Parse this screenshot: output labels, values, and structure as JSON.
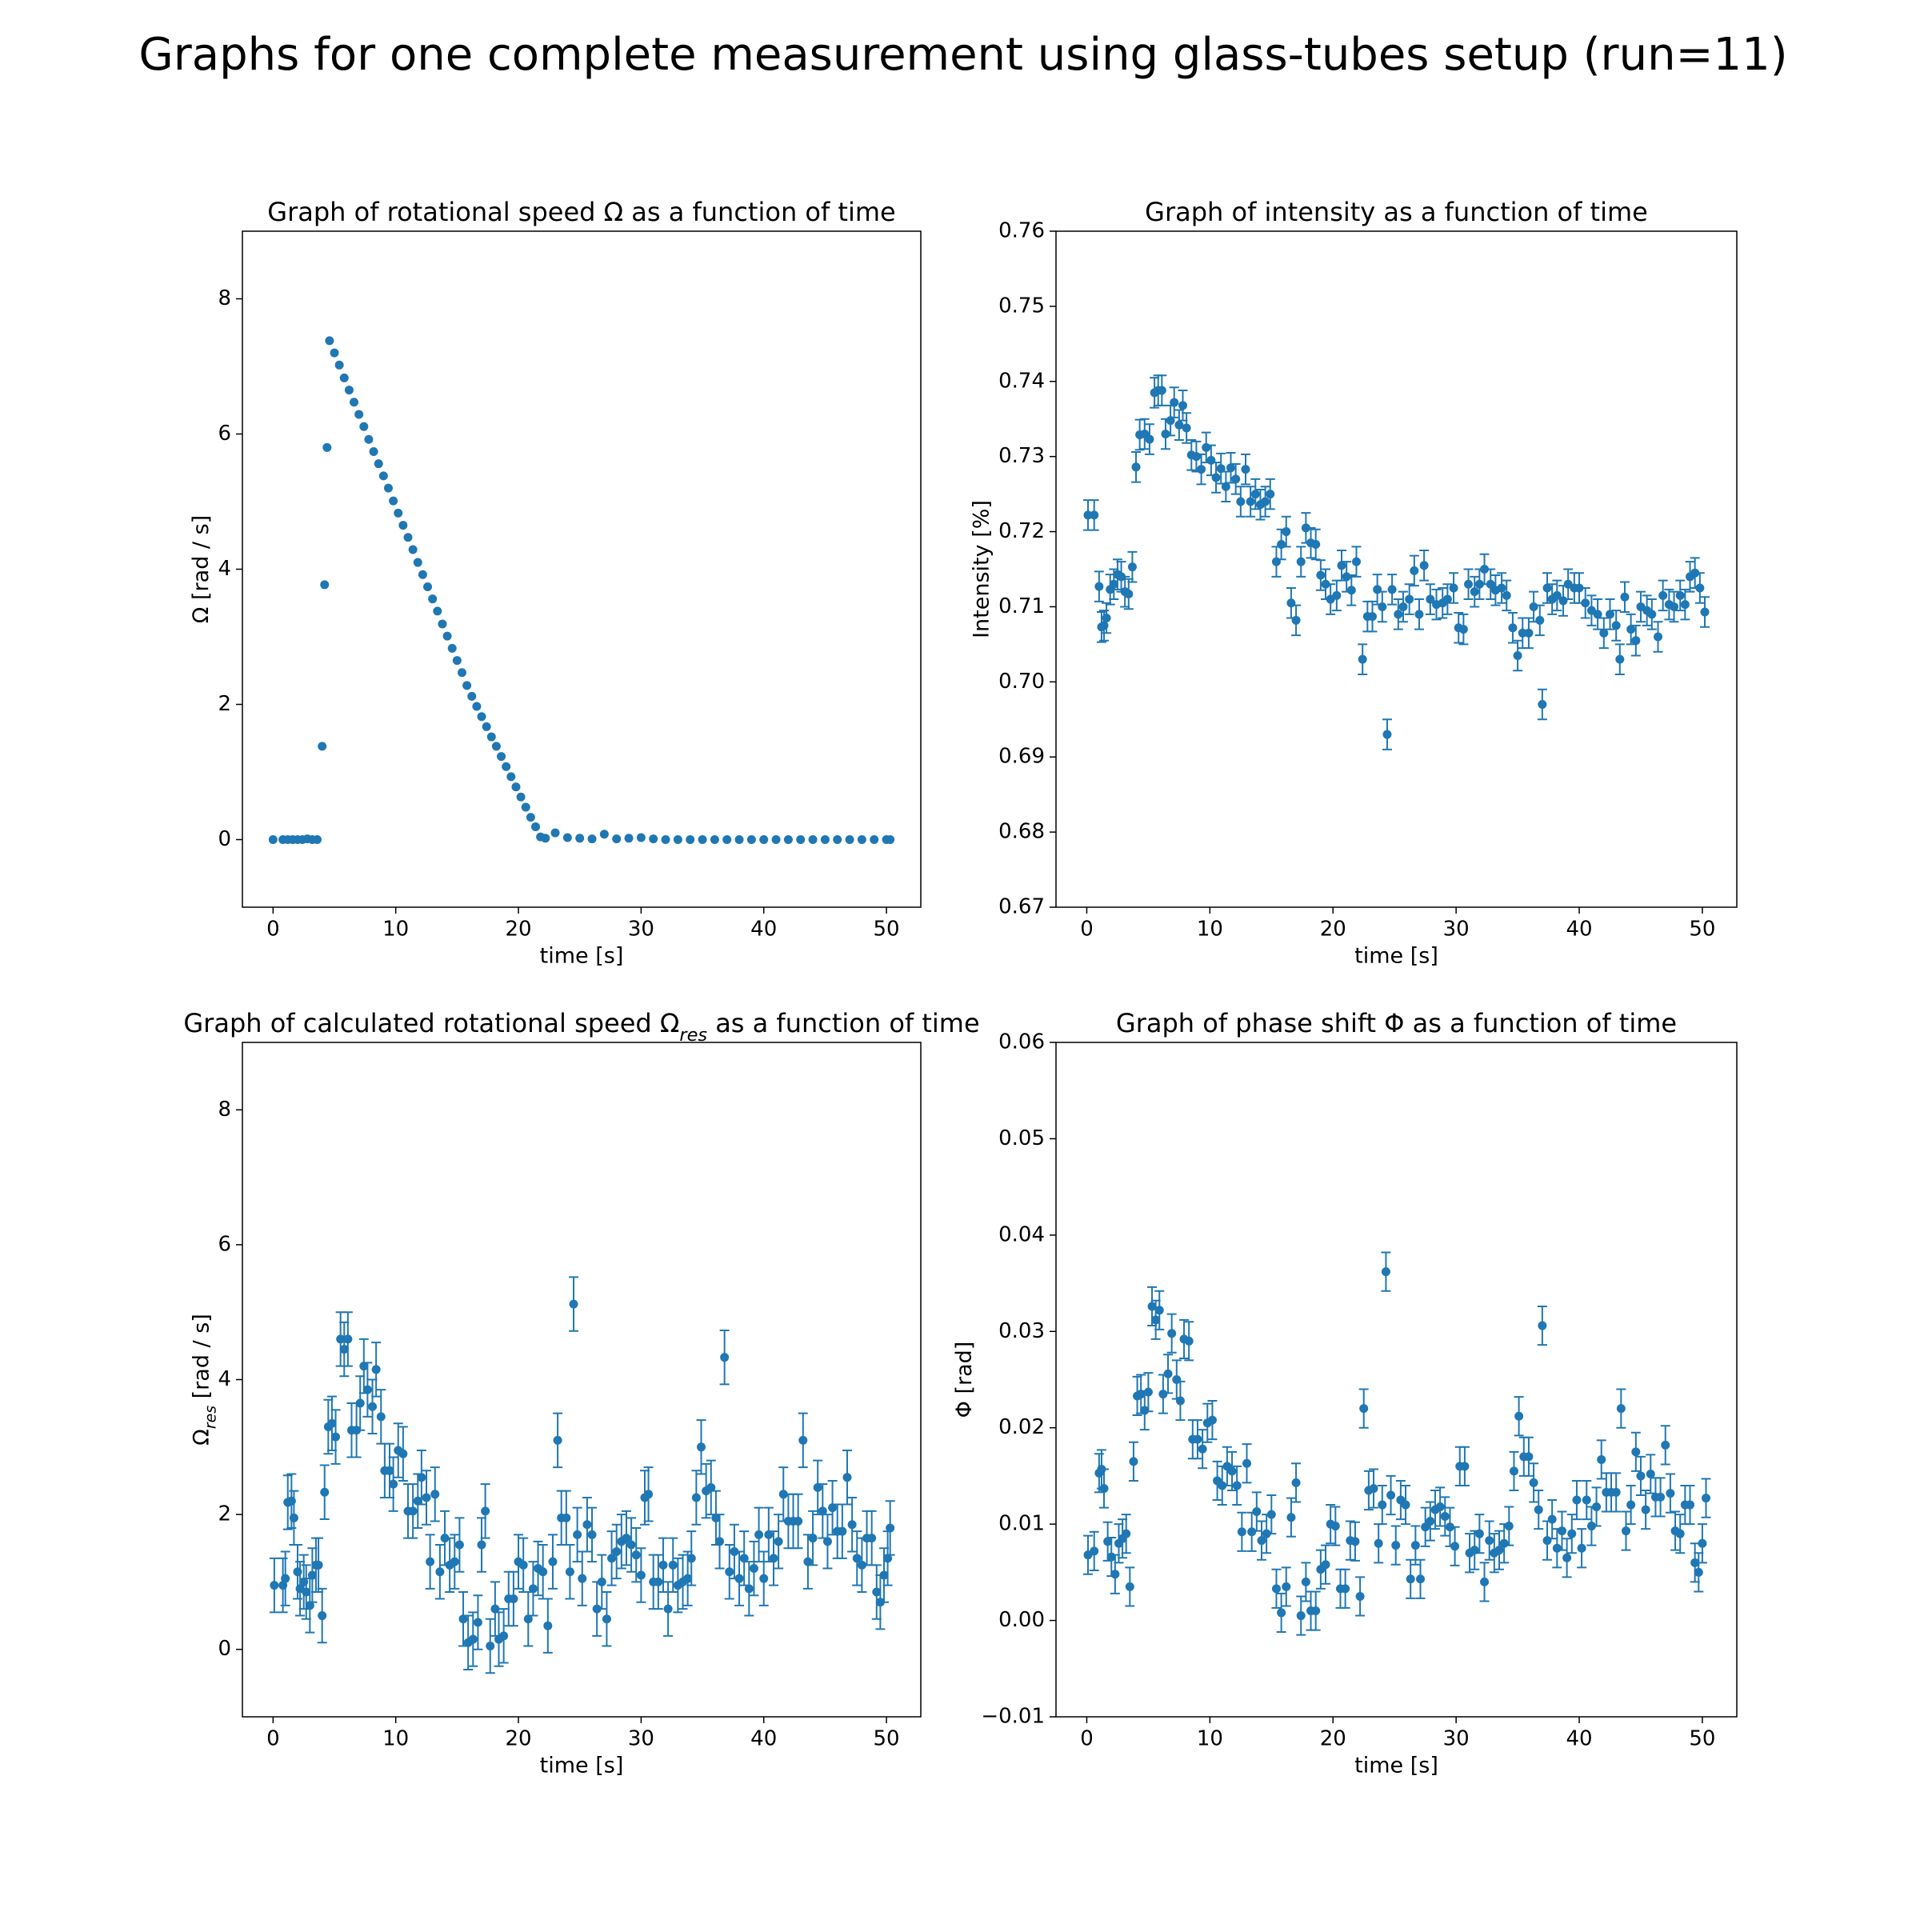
{
  "title": "Graphs for one complete measurement using glass-tubes setup (run=11)",
  "chart_data": [
    {
      "type": "scatter",
      "title": "Graph of rotational speed Ω as a function of time",
      "xlabel": "time [s]",
      "ylabel": "Ω [rad / s]",
      "color": "#1f77b4",
      "xlim": [
        -2.5,
        52.8
      ],
      "ylim": [
        -1,
        9
      ],
      "xticks": [
        0,
        10,
        20,
        30,
        40,
        50
      ],
      "yticks": [
        0,
        2,
        4,
        6,
        8
      ],
      "x": [
        0,
        0.8,
        1.2,
        1.6,
        2.0,
        2.4,
        2.8,
        3.2,
        3.6,
        4.0,
        4.2,
        4.4,
        4.6,
        5.0,
        5.4,
        5.8,
        6.2,
        6.6,
        7.0,
        7.4,
        7.8,
        8.2,
        8.6,
        9.0,
        9.4,
        9.8,
        10.2,
        10.6,
        11.0,
        11.4,
        11.8,
        12.2,
        12.6,
        13.0,
        13.4,
        13.8,
        14.2,
        14.6,
        15.0,
        15.4,
        15.8,
        16.2,
        16.6,
        17.0,
        17.4,
        17.8,
        18.2,
        18.6,
        19.0,
        19.4,
        19.8,
        20.2,
        20.6,
        21.0,
        21.4,
        21.8,
        22.2,
        23,
        24,
        25,
        26,
        27,
        28,
        29,
        30,
        31,
        32,
        33,
        34,
        35,
        36,
        37,
        38,
        39,
        40,
        41,
        42,
        43,
        44,
        45,
        46,
        47,
        48,
        49,
        50,
        50.3
      ],
      "values": [
        0,
        0,
        0,
        0,
        0,
        0,
        0.01,
        0,
        0,
        1.38,
        3.77,
        5.8,
        7.38,
        7.2,
        7.02,
        6.83,
        6.65,
        6.47,
        6.29,
        6.11,
        5.92,
        5.74,
        5.56,
        5.38,
        5.2,
        5.01,
        4.83,
        4.65,
        4.47,
        4.29,
        4.1,
        3.92,
        3.74,
        3.56,
        3.38,
        3.19,
        3.01,
        2.83,
        2.65,
        2.47,
        2.28,
        2.12,
        1.97,
        1.82,
        1.67,
        1.52,
        1.38,
        1.23,
        1.08,
        0.93,
        0.78,
        0.63,
        0.48,
        0.33,
        0.19,
        0.04,
        0.02,
        0.1,
        0.03,
        0.02,
        0.01,
        0.08,
        0.01,
        0.02,
        0.03,
        0.01,
        0,
        0,
        0,
        0,
        0,
        0,
        0,
        0,
        0,
        0,
        0,
        0,
        0,
        0,
        0,
        0,
        0,
        0,
        0,
        0
      ]
    },
    {
      "type": "errorbar",
      "title": "Graph of intensity as a function of time",
      "xlabel": "time [s]",
      "ylabel": "Intensity [%]",
      "color": "#1f77b4",
      "yerr": 0.002,
      "xlim": [
        -2.5,
        52.8
      ],
      "ylim": [
        0.67,
        0.76
      ],
      "xticks": [
        0,
        10,
        20,
        30,
        40,
        50
      ],
      "yticks": [
        0.67,
        0.68,
        0.69,
        {
          "value": 0.7,
          "label": "0.70"
        },
        0.71,
        0.72,
        0.73,
        0.74,
        0.75,
        0.76
      ],
      "x": [
        0.1,
        0.6,
        1.0,
        1.2,
        1.4,
        1.6,
        1.9,
        2.2,
        2.5,
        2.8,
        3.1,
        3.4,
        3.7,
        4.0,
        4.3,
        4.7,
        5.1,
        5.5,
        5.8,
        6.1,
        6.4,
        6.8,
        7.1,
        7.5,
        7.8,
        8.1,
        8.5,
        8.9,
        9.3,
        9.7,
        10.1,
        10.5,
        10.9,
        11.3,
        11.7,
        12.1,
        12.5,
        12.9,
        13.3,
        13.7,
        14.1,
        14.5,
        14.9,
        15.4,
        15.8,
        16.2,
        16.6,
        17.0,
        17.4,
        17.8,
        18.2,
        18.6,
        19.0,
        19.4,
        19.8,
        20.3,
        20.7,
        21.1,
        21.5,
        21.9,
        22.4,
        22.8,
        23.2,
        23.6,
        24.0,
        24.4,
        24.8,
        25.3,
        25.7,
        26.2,
        26.6,
        27.0,
        27.4,
        27.9,
        28.4,
        28.9,
        29.3,
        29.8,
        30.2,
        30.6,
        31.0,
        31.5,
        31.9,
        32.3,
        32.8,
        33.2,
        33.7,
        34.1,
        34.6,
        35.0,
        35.4,
        35.9,
        36.3,
        36.8,
        37.0,
        37.4,
        37.8,
        38.2,
        38.7,
        39.1,
        39.6,
        40.0,
        40.5,
        41.0,
        41.5,
        42.0,
        42.5,
        43.0,
        43.3,
        43.7,
        44.2,
        44.6,
        45.0,
        45.5,
        45.9,
        46.4,
        46.8,
        47.3,
        47.7,
        48.2,
        48.6,
        49.0,
        49.4,
        49.8,
        50.2
      ],
      "values": [
        0.7222,
        0.7222,
        0.7127,
        0.7073,
        0.7075,
        0.7085,
        0.7123,
        0.713,
        0.7143,
        0.714,
        0.712,
        0.7117,
        0.7153,
        0.7286,
        0.7329,
        0.733,
        0.7323,
        0.7385,
        0.7388,
        0.7388,
        0.733,
        0.7348,
        0.7372,
        0.7342,
        0.7368,
        0.7338,
        0.7302,
        0.73,
        0.7283,
        0.7312,
        0.7295,
        0.7272,
        0.7284,
        0.726,
        0.7285,
        0.727,
        0.724,
        0.7283,
        0.724,
        0.725,
        0.7236,
        0.724,
        0.725,
        0.716,
        0.7183,
        0.72,
        0.7105,
        0.7082,
        0.716,
        0.7205,
        0.7185,
        0.7183,
        0.7142,
        0.713,
        0.711,
        0.7115,
        0.7155,
        0.714,
        0.7122,
        0.716,
        0.703,
        0.7087,
        0.7087,
        0.7123,
        0.71,
        0.693,
        0.7123,
        0.709,
        0.71,
        0.711,
        0.7148,
        0.709,
        0.7155,
        0.711,
        0.7103,
        0.7105,
        0.711,
        0.7125,
        0.7072,
        0.707,
        0.713,
        0.712,
        0.713,
        0.715,
        0.713,
        0.7122,
        0.7125,
        0.7115,
        0.7072,
        0.7035,
        0.7065,
        0.7065,
        0.71,
        0.7082,
        0.697,
        0.7125,
        0.711,
        0.7115,
        0.7108,
        0.713,
        0.7125,
        0.7125,
        0.7105,
        0.7095,
        0.709,
        0.7065,
        0.709,
        0.7075,
        0.703,
        0.7113,
        0.707,
        0.7055,
        0.71,
        0.7095,
        0.709,
        0.706,
        0.7115,
        0.7103,
        0.71,
        0.7115,
        0.7103,
        0.714,
        0.7145,
        0.7125,
        0.7093
      ]
    },
    {
      "type": "errorbar",
      "title": [
        "Graph of calculated rotational speed Ω",
        "res",
        " as a function of time"
      ],
      "xlabel": "time [s]",
      "ylabel": [
        "Ω",
        "res",
        " [rad / s]"
      ],
      "color": "#1f77b4",
      "yerr": 0.4,
      "xlim": [
        -2.5,
        52.8
      ],
      "ylim": [
        -1,
        9
      ],
      "xticks": [
        0,
        10,
        20,
        30,
        40,
        50
      ],
      "yticks": [
        0,
        2,
        4,
        6,
        8
      ],
      "x": [
        0.1,
        0.8,
        1.0,
        1.2,
        1.5,
        1.7,
        2.0,
        2.2,
        2.5,
        2.7,
        3.0,
        3.2,
        3.5,
        3.7,
        4.0,
        4.2,
        4.5,
        4.8,
        5.1,
        5.5,
        5.8,
        6.1,
        6.4,
        6.8,
        7.1,
        7.4,
        7.7,
        8.1,
        8.4,
        8.8,
        9.1,
        9.5,
        9.8,
        10.2,
        10.6,
        11.0,
        11.4,
        11.8,
        12.1,
        12.5,
        12.8,
        13.2,
        13.6,
        14.0,
        14.4,
        14.8,
        15.2,
        15.5,
        15.9,
        16.3,
        16.7,
        17.0,
        17.3,
        17.7,
        18.1,
        18.4,
        18.8,
        19.2,
        19.6,
        20.0,
        20.4,
        20.8,
        21.2,
        21.6,
        22.0,
        22.4,
        22.8,
        23.2,
        23.5,
        23.9,
        24.2,
        24.5,
        24.8,
        25.2,
        25.6,
        26.0,
        26.4,
        26.8,
        27.2,
        27.6,
        28.0,
        28.4,
        28.8,
        29.2,
        29.6,
        30.0,
        30.3,
        30.6,
        31.0,
        31.4,
        31.8,
        32.2,
        32.6,
        33.0,
        33.4,
        33.8,
        34.1,
        34.5,
        34.9,
        35.3,
        35.7,
        36.1,
        36.4,
        36.8,
        37.2,
        37.6,
        38.0,
        38.4,
        38.8,
        39.2,
        39.6,
        40.0,
        40.4,
        40.8,
        41.2,
        41.6,
        42.0,
        42.4,
        42.8,
        43.2,
        43.6,
        44.0,
        44.4,
        44.8,
        45.2,
        45.6,
        46.0,
        46.4,
        46.8,
        47.2,
        47.6,
        48.0,
        48.4,
        48.8,
        49.2,
        49.5,
        49.8,
        50.1,
        50.3
      ],
      "values": [
        0.95,
        0.95,
        1.05,
        2.18,
        2.2,
        1.95,
        1.15,
        0.9,
        1.0,
        0.85,
        0.65,
        1.1,
        1.25,
        1.25,
        0.5,
        2.33,
        3.3,
        3.35,
        3.15,
        4.6,
        4.45,
        4.6,
        3.25,
        3.25,
        3.65,
        4.2,
        3.85,
        3.6,
        4.15,
        3.45,
        2.65,
        2.65,
        2.45,
        2.95,
        2.9,
        2.05,
        2.05,
        2.2,
        2.55,
        2.25,
        1.3,
        2.3,
        1.15,
        1.65,
        1.25,
        1.3,
        1.55,
        0.45,
        0.1,
        0.15,
        0.4,
        1.55,
        2.05,
        0.05,
        0.6,
        0.15,
        0.2,
        0.75,
        0.75,
        1.3,
        1.25,
        0.45,
        0.9,
        1.2,
        1.15,
        0.35,
        1.3,
        3.1,
        1.95,
        1.95,
        1.15,
        5.12,
        1.7,
        1.05,
        1.85,
        1.7,
        0.6,
        1.0,
        0.45,
        1.35,
        1.45,
        1.6,
        1.65,
        1.55,
        1.4,
        1.1,
        2.25,
        2.3,
        1.0,
        1.0,
        1.25,
        0.6,
        1.25,
        0.95,
        1.0,
        1.05,
        1.35,
        2.25,
        3.0,
        2.35,
        2.4,
        1.95,
        1.6,
        4.33,
        1.15,
        1.45,
        1.05,
        1.35,
        0.9,
        1.2,
        1.7,
        1.05,
        1.7,
        1.35,
        1.6,
        2.3,
        1.9,
        1.9,
        1.9,
        3.1,
        1.3,
        1.65,
        2.4,
        2.05,
        1.6,
        2.1,
        1.75,
        1.75,
        2.55,
        1.85,
        1.35,
        1.25,
        1.65,
        1.65,
        0.85,
        0.7,
        1.1,
        1.35,
        1.8
      ]
    },
    {
      "type": "errorbar",
      "title": "Graph of phase shift Φ as a function of time",
      "xlabel": "time [s]",
      "ylabel": "Φ [rad]",
      "color": "#1f77b4",
      "yerr": 0.002,
      "xlim": [
        -2.5,
        52.8
      ],
      "ylim": [
        -0.01,
        0.06
      ],
      "xticks": [
        0,
        10,
        20,
        30,
        40,
        50
      ],
      "yticks": [
        {
          "value": -0.01,
          "label": "−0.01"
        },
        {
          "value": 0,
          "label": "0.00"
        },
        0.01,
        0.02,
        0.03,
        0.04,
        0.05,
        0.06
      ],
      "x": [
        0.1,
        0.6,
        1.0,
        1.2,
        1.4,
        1.7,
        2.0,
        2.3,
        2.6,
        2.9,
        3.2,
        3.5,
        3.8,
        4.1,
        4.4,
        4.7,
        5.0,
        5.3,
        5.6,
        5.9,
        6.2,
        6.6,
        6.9,
        7.3,
        7.6,
        7.9,
        8.3,
        8.6,
        9.0,
        9.4,
        9.8,
        10.2,
        10.6,
        11.0,
        11.4,
        11.8,
        12.2,
        12.6,
        13.0,
        13.4,
        13.8,
        14.2,
        14.6,
        15.0,
        15.4,
        15.8,
        16.2,
        16.6,
        17.0,
        17.4,
        17.8,
        18.2,
        18.6,
        19.0,
        19.4,
        19.8,
        20.2,
        20.6,
        21.0,
        21.4,
        21.8,
        22.2,
        22.5,
        22.9,
        23.3,
        23.7,
        24.0,
        24.3,
        24.7,
        25.1,
        25.5,
        25.9,
        26.3,
        26.7,
        27.1,
        27.5,
        27.9,
        28.3,
        28.7,
        29.1,
        29.5,
        29.9,
        30.3,
        30.7,
        31.1,
        31.5,
        31.9,
        32.3,
        32.7,
        33.1,
        33.5,
        33.9,
        34.3,
        34.7,
        35.1,
        35.5,
        35.9,
        36.3,
        36.7,
        37.0,
        37.4,
        37.8,
        38.2,
        38.6,
        39.0,
        39.4,
        39.8,
        40.2,
        40.6,
        41.0,
        41.4,
        41.8,
        42.2,
        42.6,
        43.0,
        43.4,
        43.8,
        44.2,
        44.6,
        45.0,
        45.4,
        45.8,
        46.2,
        46.6,
        47.0,
        47.4,
        47.8,
        48.2,
        48.6,
        49.0,
        49.4,
        49.7,
        50.0,
        50.3
      ],
      "values": [
        0.0068,
        0.0072,
        0.0153,
        0.0157,
        0.0137,
        0.0082,
        0.0066,
        0.0048,
        0.008,
        0.0085,
        0.009,
        0.0035,
        0.0165,
        0.0233,
        0.0235,
        0.0218,
        0.0237,
        0.0326,
        0.0312,
        0.0322,
        0.0235,
        0.0256,
        0.0298,
        0.025,
        0.0228,
        0.0292,
        0.029,
        0.0188,
        0.0188,
        0.0178,
        0.0205,
        0.0208,
        0.0145,
        0.014,
        0.016,
        0.0155,
        0.014,
        0.0092,
        0.0163,
        0.0092,
        0.0113,
        0.0083,
        0.009,
        0.011,
        0.0033,
        0.0008,
        0.0035,
        0.0107,
        0.0143,
        0.0005,
        0.004,
        0.001,
        0.001,
        0.0053,
        0.0058,
        0.01,
        0.0098,
        0.0033,
        0.0033,
        0.0083,
        0.0082,
        0.0025,
        0.022,
        0.0135,
        0.0137,
        0.008,
        0.012,
        0.0362,
        0.013,
        0.0078,
        0.0125,
        0.012,
        0.0043,
        0.0078,
        0.0043,
        0.0097,
        0.0103,
        0.0115,
        0.0118,
        0.0108,
        0.0097,
        0.0077,
        0.016,
        0.016,
        0.007,
        0.0073,
        0.009,
        0.004,
        0.0083,
        0.007,
        0.0073,
        0.008,
        0.0098,
        0.0155,
        0.0212,
        0.017,
        0.017,
        0.0143,
        0.0115,
        0.0306,
        0.0083,
        0.0105,
        0.0075,
        0.0093,
        0.0065,
        0.009,
        0.0125,
        0.0075,
        0.0125,
        0.0098,
        0.0118,
        0.0167,
        0.0133,
        0.0133,
        0.0133,
        0.022,
        0.0093,
        0.012,
        0.0175,
        0.015,
        0.0115,
        0.0152,
        0.0128,
        0.0128,
        0.0182,
        0.0132,
        0.0093,
        0.009,
        0.012,
        0.012,
        0.006,
        0.005,
        0.008,
        0.0127
      ]
    }
  ]
}
